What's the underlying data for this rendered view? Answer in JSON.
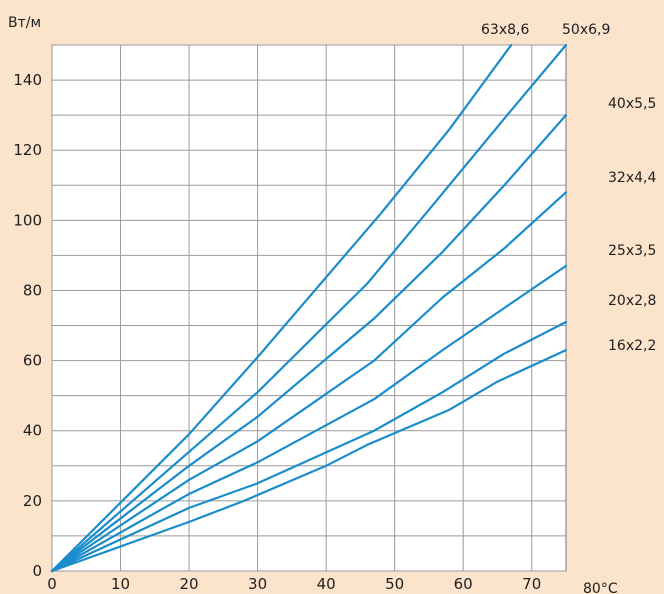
{
  "chart_data": {
    "type": "line",
    "title": "",
    "xlabel": "80°C",
    "ylabel": "Вт/м",
    "xlim": [
      0,
      75
    ],
    "ylim": [
      0,
      150
    ],
    "x_ticks": [
      0,
      10,
      20,
      30,
      40,
      50,
      60,
      70
    ],
    "x_tick_labels": [
      "0",
      "10",
      "20",
      "30",
      "40",
      "50",
      "60",
      "70"
    ],
    "y_ticks": [
      0,
      20,
      40,
      60,
      80,
      100,
      120,
      140
    ],
    "y_tick_labels": [
      "0",
      "20",
      "40",
      "60",
      "80",
      "100",
      "120",
      "140"
    ],
    "grid": true,
    "colors": {
      "background": "#fbe3cc",
      "plot_background": "#ffffff",
      "grid": "#9a9a9a",
      "series": "#1a8ccc",
      "text": "#1f1f1f"
    },
    "series": [
      {
        "name": "63x8,6",
        "x": [
          0,
          20,
          30,
          48,
          58,
          67
        ],
        "y": [
          0,
          39,
          61,
          102,
          126,
          150
        ]
      },
      {
        "name": "50x6,9",
        "x": [
          0,
          20,
          30,
          46,
          55,
          66,
          75
        ],
        "y": [
          0,
          34,
          51,
          82,
          103,
          129,
          150
        ]
      },
      {
        "name": "40x5,5",
        "x": [
          0,
          20,
          30,
          47,
          57,
          66,
          75
        ],
        "y": [
          0,
          30,
          44,
          72,
          91,
          110,
          130
        ]
      },
      {
        "name": "32x4,4",
        "x": [
          0,
          20,
          30,
          47,
          57,
          66,
          75
        ],
        "y": [
          0,
          26,
          37,
          60,
          78,
          92,
          108
        ]
      },
      {
        "name": "25x3,5",
        "x": [
          0,
          20,
          30,
          47,
          57,
          66,
          75
        ],
        "y": [
          0,
          22,
          31,
          49,
          63,
          75,
          87
        ]
      },
      {
        "name": "20x2,8",
        "x": [
          0,
          20,
          30,
          47,
          57,
          66,
          75
        ],
        "y": [
          0,
          18,
          25,
          40,
          51,
          62,
          71
        ]
      },
      {
        "name": "16x2,2",
        "x": [
          0,
          20,
          28,
          40,
          46,
          58,
          65,
          75
        ],
        "y": [
          0,
          14,
          20,
          30,
          36,
          46,
          54,
          63
        ]
      }
    ]
  }
}
